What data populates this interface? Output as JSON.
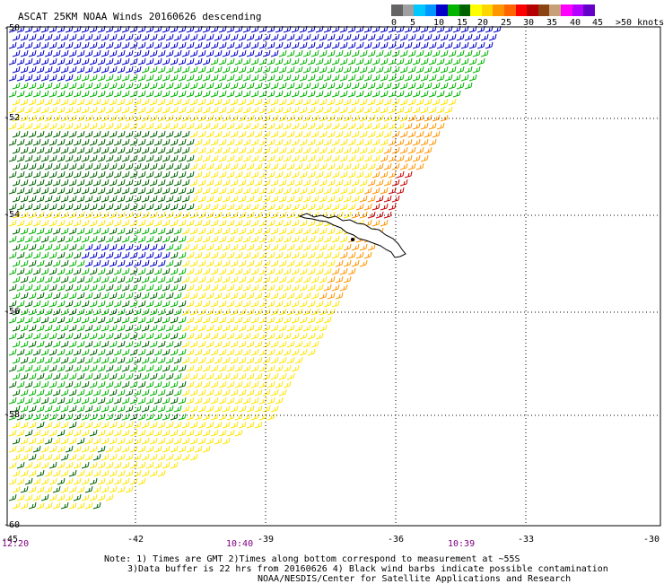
{
  "title": "ASCAT 25KM NOAA Winds 20160626 descending",
  "speed_scale": {
    "labels": [
      "0",
      "5",
      "10",
      "15",
      "20",
      "25",
      "30",
      "35",
      "40",
      "45",
      ">50 knots"
    ],
    "colors": [
      "#646464",
      "#a0a0a0",
      "#00c8ff",
      "#0096ff",
      "#0000c8",
      "#00b400",
      "#006400",
      "#ffff00",
      "#ffd700",
      "#ff9600",
      "#ff6400",
      "#ff0000",
      "#b40000",
      "#8b4513",
      "#c8a078",
      "#ff00ff",
      "#b400ff",
      "#6400c8"
    ]
  },
  "latitude_labels": [
    "-50",
    "-52",
    "-54",
    "-56",
    "-58",
    "-60"
  ],
  "longitude_labels": [
    "-45",
    "-42",
    "-39",
    "-36",
    "-33",
    "-30"
  ],
  "time_labels": [
    "12:20",
    "10:40",
    "10:39"
  ],
  "notes": {
    "line1": "Note: 1) Times are GMT 2)Times along bottom correspond to measurement at ~55S",
    "line2": "3)Data buffer is 22 hrs from 20160626 4) Black wind barbs indicate possible contamination",
    "line3": "NOAA/NESDIS/Center for Satellite Applications and Research"
  },
  "colors": {
    "grid": "#000000",
    "coast": "#000000",
    "weak": "#00b400",
    "weak_dark": "#006400",
    "light": "#0000c8",
    "strong": "#ffe600",
    "stronger": "#ff9600",
    "strongest": "#c80000"
  },
  "icons": [
    "wind-barb-icon"
  ]
}
